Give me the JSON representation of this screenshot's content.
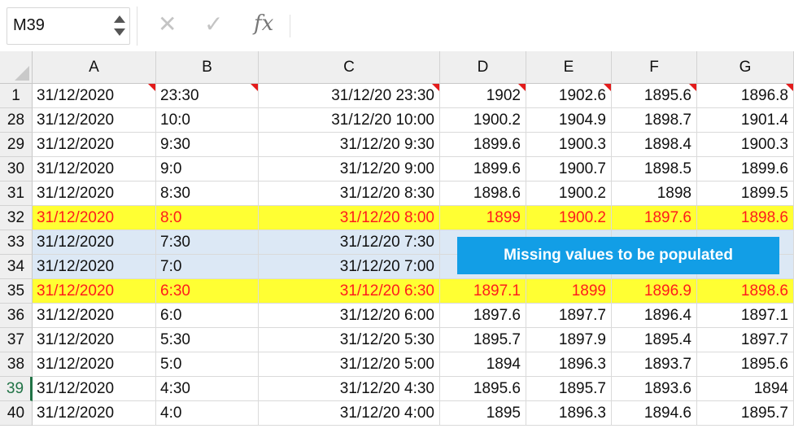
{
  "formula_bar": {
    "name_box": "M39",
    "function_label": "fx",
    "formula": ""
  },
  "columns": [
    "A",
    "B",
    "C",
    "D",
    "E",
    "F",
    "G"
  ],
  "rows": [
    {
      "row": "1",
      "A": "31/12/2020",
      "B": "23:30",
      "C": "31/12/20 23:30",
      "D": "1902",
      "E": "1902.6",
      "F": "1895.6",
      "G": "1896.8",
      "style": "normal",
      "comments": [
        "A",
        "B",
        "C",
        "D",
        "E",
        "F",
        "G"
      ]
    },
    {
      "row": "28",
      "A": "31/12/2020",
      "B": "10:0",
      "C": "31/12/20 10:00",
      "D": "1900.2",
      "E": "1904.9",
      "F": "1898.7",
      "G": "1901.4",
      "style": "normal"
    },
    {
      "row": "29",
      "A": "31/12/2020",
      "B": "9:30",
      "C": "31/12/20 9:30",
      "D": "1899.6",
      "E": "1900.3",
      "F": "1898.4",
      "G": "1900.3",
      "style": "normal"
    },
    {
      "row": "30",
      "A": "31/12/2020",
      "B": "9:0",
      "C": "31/12/20 9:00",
      "D": "1899.6",
      "E": "1900.7",
      "F": "1898.5",
      "G": "1899.6",
      "style": "normal"
    },
    {
      "row": "31",
      "A": "31/12/2020",
      "B": "8:30",
      "C": "31/12/20 8:30",
      "D": "1898.6",
      "E": "1900.2",
      "F": "1898",
      "G": "1899.5",
      "style": "normal"
    },
    {
      "row": "32",
      "A": "31/12/2020",
      "B": "8:0",
      "C": "31/12/20 8:00",
      "D": "1899",
      "E": "1900.2",
      "F": "1897.6",
      "G": "1898.6",
      "style": "yellow"
    },
    {
      "row": "33",
      "A": "31/12/2020",
      "B": "7:30",
      "C": "31/12/20 7:30",
      "D": "",
      "E": "",
      "F": "",
      "G": "",
      "style": "blue"
    },
    {
      "row": "34",
      "A": "31/12/2020",
      "B": "7:0",
      "C": "31/12/20 7:00",
      "D": "",
      "E": "",
      "F": "",
      "G": "",
      "style": "blue"
    },
    {
      "row": "35",
      "A": "31/12/2020",
      "B": "6:30",
      "C": "31/12/20 6:30",
      "D": "1897.1",
      "E": "1899",
      "F": "1896.9",
      "G": "1898.6",
      "style": "yellow"
    },
    {
      "row": "36",
      "A": "31/12/2020",
      "B": "6:0",
      "C": "31/12/20 6:00",
      "D": "1897.6",
      "E": "1897.7",
      "F": "1896.4",
      "G": "1897.1",
      "style": "normal"
    },
    {
      "row": "37",
      "A": "31/12/2020",
      "B": "5:30",
      "C": "31/12/20 5:30",
      "D": "1895.7",
      "E": "1897.9",
      "F": "1895.4",
      "G": "1897.7",
      "style": "normal"
    },
    {
      "row": "38",
      "A": "31/12/2020",
      "B": "5:0",
      "C": "31/12/20 5:00",
      "D": "1894",
      "E": "1896.3",
      "F": "1893.7",
      "G": "1895.6",
      "style": "normal"
    },
    {
      "row": "39",
      "A": "31/12/2020",
      "B": "4:30",
      "C": "31/12/20 4:30",
      "D": "1895.6",
      "E": "1895.7",
      "F": "1893.6",
      "G": "1894",
      "style": "normal",
      "active": true
    },
    {
      "row": "40",
      "A": "31/12/2020",
      "B": "4:0",
      "C": "31/12/20 4:00",
      "D": "1895",
      "E": "1896.3",
      "F": "1894.6",
      "G": "1895.7",
      "style": "normal"
    }
  ],
  "callout": {
    "text": "Missing values to be populated",
    "color": "#129ee6"
  },
  "colors": {
    "highlight_yellow": "#ffff33",
    "highlight_text_red": "#ff1b1b",
    "highlight_blue": "#dce8f5",
    "active_row_green": "#217346",
    "comment_flag_red": "#e31b1b"
  }
}
